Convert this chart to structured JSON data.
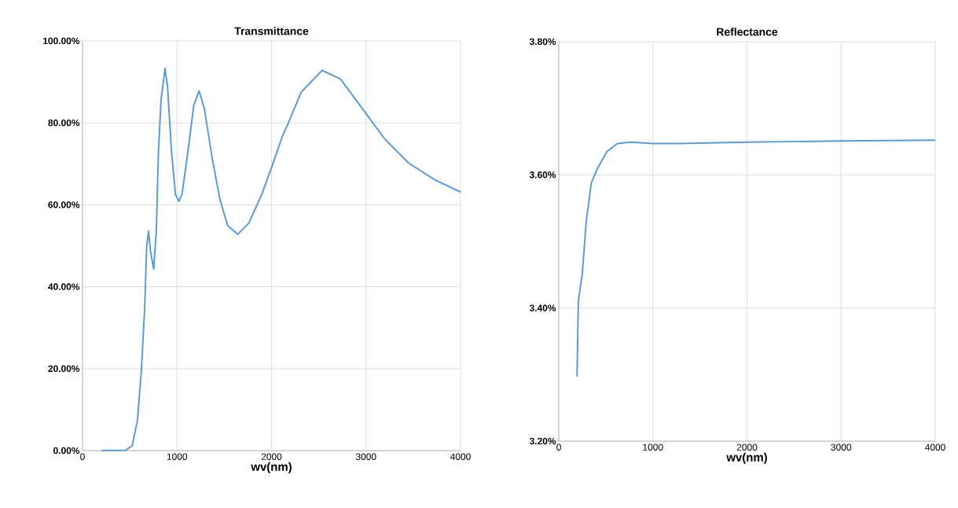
{
  "chart_data": [
    {
      "type": "line",
      "title": "Transmittance",
      "xlabel": "wv(nm)",
      "color": "#5b9bd5",
      "grid": true,
      "x": [
        202,
        457,
        526,
        582,
        623,
        657,
        679,
        698,
        720,
        753,
        781,
        803,
        831,
        873,
        900,
        942,
        983,
        1019,
        1053,
        1122,
        1177,
        1233,
        1288,
        1371,
        1454,
        1537,
        1643,
        1759,
        1898,
        2008,
        2119,
        2175,
        2314,
        2535,
        2729,
        2995,
        3200,
        3450,
        3727,
        4000
      ],
      "values": [
        0,
        0.1,
        1.2,
        7.5,
        19.7,
        34.4,
        49.8,
        53.6,
        48.5,
        44.3,
        53.6,
        72.8,
        85.6,
        93.3,
        88.8,
        72.8,
        62.6,
        60.8,
        62.6,
        74.1,
        84.3,
        87.8,
        83.6,
        71.5,
        61.3,
        54.9,
        52.8,
        55.5,
        62.6,
        69.6,
        77.0,
        79.8,
        87.5,
        92.8,
        90.7,
        82.4,
        76.0,
        70.2,
        66.1,
        63.1
      ],
      "xlim": [
        0,
        4000
      ],
      "xticks": [
        0,
        1000,
        2000,
        3000,
        4000
      ],
      "ylim": [
        0,
        100
      ],
      "yticks": [
        {
          "value": 0,
          "label": "0.00%"
        },
        {
          "value": 20,
          "label": "20.00%"
        },
        {
          "value": 40,
          "label": "40.00%"
        },
        {
          "value": 60,
          "label": "60.00%"
        },
        {
          "value": 80,
          "label": "80.00%"
        },
        {
          "value": 100,
          "label": "100.00%"
        }
      ]
    },
    {
      "type": "line",
      "title": "Reflectance",
      "xlabel": "wv(nm)",
      "color": "#5b9bd5",
      "grid": true,
      "x": [
        194,
        208,
        249,
        291,
        346,
        416,
        512,
        623,
        761,
        1000,
        1288,
        2000,
        3000,
        4000
      ],
      "values": [
        3.297,
        3.411,
        3.45,
        3.529,
        3.588,
        3.611,
        3.635,
        3.647,
        3.649,
        3.647,
        3.647,
        3.649,
        3.651,
        3.652
      ],
      "xlim": [
        0,
        4000
      ],
      "xticks": [
        0,
        1000,
        2000,
        3000,
        4000
      ],
      "ylim": [
        3.2,
        3.8
      ],
      "yticks": [
        {
          "value": 3.2,
          "label": "3.20%"
        },
        {
          "value": 3.4,
          "label": "3.40%"
        },
        {
          "value": 3.6,
          "label": "3.60%"
        },
        {
          "value": 3.8,
          "label": "3.80%"
        }
      ]
    }
  ]
}
